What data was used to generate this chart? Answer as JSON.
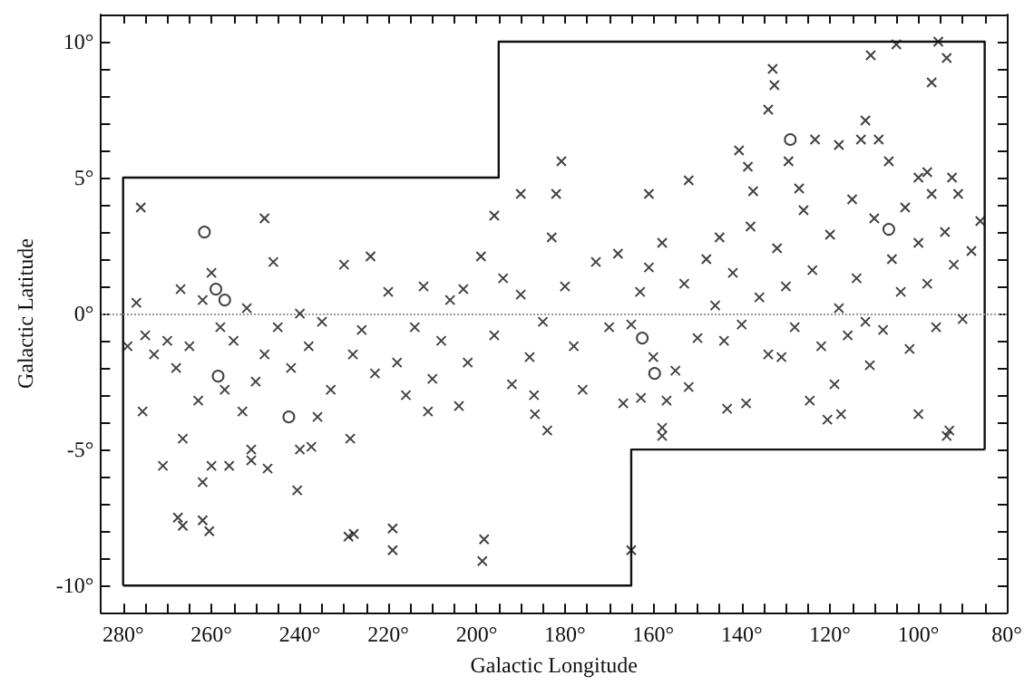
{
  "chart_data": {
    "type": "scatter",
    "xlabel": "Galactic Longitude",
    "ylabel": "Galactic Latitude",
    "xlim": [
      285,
      80
    ],
    "ylim": [
      -11,
      11
    ],
    "xticks": [
      {
        "value": 280,
        "label": "280°"
      },
      {
        "value": 275,
        "label": null
      },
      {
        "value": 270,
        "label": null
      },
      {
        "value": 265,
        "label": null
      },
      {
        "value": 260,
        "label": "260°"
      },
      {
        "value": 255,
        "label": null
      },
      {
        "value": 250,
        "label": null
      },
      {
        "value": 245,
        "label": null
      },
      {
        "value": 240,
        "label": "240°"
      },
      {
        "value": 235,
        "label": null
      },
      {
        "value": 230,
        "label": null
      },
      {
        "value": 225,
        "label": null
      },
      {
        "value": 220,
        "label": "220°"
      },
      {
        "value": 215,
        "label": null
      },
      {
        "value": 210,
        "label": null
      },
      {
        "value": 205,
        "label": null
      },
      {
        "value": 200,
        "label": "200°"
      },
      {
        "value": 195,
        "label": null
      },
      {
        "value": 190,
        "label": null
      },
      {
        "value": 185,
        "label": null
      },
      {
        "value": 180,
        "label": "180°"
      },
      {
        "value": 175,
        "label": null
      },
      {
        "value": 170,
        "label": null
      },
      {
        "value": 165,
        "label": null
      },
      {
        "value": 160,
        "label": "160°"
      },
      {
        "value": 155,
        "label": null
      },
      {
        "value": 150,
        "label": null
      },
      {
        "value": 145,
        "label": null
      },
      {
        "value": 140,
        "label": "140°"
      },
      {
        "value": 135,
        "label": null
      },
      {
        "value": 130,
        "label": null
      },
      {
        "value": 125,
        "label": null
      },
      {
        "value": 120,
        "label": "120°"
      },
      {
        "value": 115,
        "label": null
      },
      {
        "value": 110,
        "label": null
      },
      {
        "value": 105,
        "label": null
      },
      {
        "value": 100,
        "label": "100°"
      },
      {
        "value": 95,
        "label": null
      },
      {
        "value": 90,
        "label": null
      },
      {
        "value": 85,
        "label": null
      },
      {
        "value": 80,
        "label": "80°"
      }
    ],
    "yticks": [
      {
        "value": -10,
        "label": "-10°"
      },
      {
        "value": -9,
        "label": null
      },
      {
        "value": -8,
        "label": null
      },
      {
        "value": -7,
        "label": null
      },
      {
        "value": -6,
        "label": null
      },
      {
        "value": -5,
        "label": "-5°"
      },
      {
        "value": -4,
        "label": null
      },
      {
        "value": -3,
        "label": null
      },
      {
        "value": -2,
        "label": null
      },
      {
        "value": -1,
        "label": null
      },
      {
        "value": 0,
        "label": "0°"
      },
      {
        "value": 1,
        "label": null
      },
      {
        "value": 2,
        "label": null
      },
      {
        "value": 3,
        "label": null
      },
      {
        "value": 4,
        "label": null
      },
      {
        "value": 5,
        "label": "5°"
      },
      {
        "value": 6,
        "label": null
      },
      {
        "value": 7,
        "label": null
      },
      {
        "value": 8,
        "label": null
      },
      {
        "value": 9,
        "label": null
      },
      {
        "value": 10,
        "label": "10°"
      }
    ],
    "grid": false,
    "ref_lines": [
      {
        "axis": "y",
        "value": 0,
        "label": null,
        "color": "#999999",
        "line_style": "dotted"
      }
    ],
    "series": [
      {
        "marker": "cross",
        "color": "#111111",
        "x": [
          276,
          196,
          190,
          133,
          132.6,
          134,
          110.8,
          105,
          95.5,
          93.6,
          97,
          112,
          123.4,
          118,
          113,
          109,
          140.6,
          138.6,
          129.4,
          180.8,
          182,
          152,
          161,
          137.4,
          106.7,
          100,
          98,
          92.4,
          91,
          248,
          271,
          267.6,
          266.5,
          262,
          260.5,
          262,
          260,
          256,
          251,
          251,
          247.3,
          240.6,
          240,
          237.4,
          228.6,
          229,
          227.8,
          219,
          219,
          198.3,
          198.7,
          266.5,
          275.6,
          165,
          158,
          158,
          93.6,
          93,
          100,
          117.5,
          120.6,
          124.6,
          143.3,
          139,
          166.8,
          162.8,
          157,
          184,
          186.8,
          270,
          275,
          273,
          268,
          265,
          262,
          260,
          258,
          255,
          252,
          250,
          248,
          245,
          242,
          240,
          238,
          235,
          233,
          230,
          228,
          226,
          223,
          220,
          218,
          216,
          214,
          212,
          210,
          208,
          206,
          204,
          202,
          199,
          196,
          194,
          192,
          190,
          188,
          185,
          183,
          180,
          178,
          176,
          173,
          170,
          168,
          165,
          163,
          160,
          158,
          155,
          153,
          150,
          148,
          146,
          144,
          142,
          140,
          138,
          136,
          134,
          132,
          130,
          128,
          126,
          124,
          122,
          120,
          118,
          116,
          114,
          112,
          110,
          108,
          106,
          104,
          102,
          100,
          98,
          96,
          94,
          92,
          90,
          88,
          86,
          267,
          263,
          257,
          253,
          246,
          236,
          224,
          211,
          203,
          115,
          111,
          103,
          97,
          119,
          127,
          131,
          145,
          152,
          161,
          187,
          279,
          277
        ],
        "values": [
          3.9,
          3.6,
          4.4,
          9.0,
          8.4,
          7.5,
          9.5,
          9.9,
          10.0,
          9.4,
          8.5,
          7.1,
          6.4,
          6.2,
          6.4,
          6.4,
          6.0,
          5.4,
          5.6,
          5.6,
          4.4,
          4.9,
          4.4,
          4.5,
          5.6,
          5.0,
          5.2,
          5.0,
          4.4,
          3.5,
          -5.6,
          -7.5,
          -7.8,
          -7.6,
          -8.0,
          -6.2,
          -5.6,
          -5.6,
          -5.0,
          -5.4,
          -5.7,
          -6.5,
          -5.0,
          -4.9,
          -4.6,
          -8.2,
          -8.1,
          -7.9,
          -8.7,
          -8.3,
          -9.1,
          -4.6,
          -3.6,
          -8.7,
          -4.5,
          -4.2,
          -4.5,
          -4.3,
          -3.7,
          -3.7,
          -3.9,
          -3.2,
          -3.5,
          -3.3,
          -3.3,
          -3.1,
          -3.2,
          -4.3,
          -3.7,
          -1.0,
          -0.8,
          -1.5,
          -2.0,
          -1.2,
          0.5,
          1.5,
          -0.5,
          -1.0,
          0.2,
          -2.5,
          -1.5,
          -0.5,
          -2.0,
          0.0,
          -1.2,
          -0.3,
          -2.8,
          1.8,
          -1.5,
          -0.6,
          -2.2,
          0.8,
          -1.8,
          -3.0,
          -0.5,
          1.0,
          -2.4,
          -1.0,
          0.5,
          -3.4,
          -1.8,
          2.1,
          -0.8,
          1.3,
          -2.6,
          0.7,
          -1.6,
          -0.3,
          2.8,
          1.0,
          -1.2,
          -2.8,
          1.9,
          -0.5,
          2.2,
          -0.4,
          0.8,
          -1.6,
          2.6,
          -2.1,
          1.1,
          -0.9,
          2.0,
          0.3,
          -1.0,
          1.5,
          -0.4,
          3.2,
          0.6,
          -1.5,
          2.4,
          1.0,
          -0.5,
          3.8,
          1.6,
          -1.2,
          2.9,
          0.2,
          -0.8,
          1.3,
          -0.3,
          3.5,
          -0.6,
          2.0,
          0.8,
          -1.3,
          2.6,
          1.1,
          -0.5,
          3.0,
          1.8,
          -0.2,
          2.3,
          3.4,
          0.9,
          -3.2,
          -2.8,
          -3.6,
          1.9,
          -3.8,
          2.1,
          -3.6,
          0.9,
          4.2,
          -1.9,
          3.9,
          4.4,
          -2.6,
          4.6,
          -1.6,
          2.8,
          -2.7,
          1.7,
          -3.0,
          -1.2,
          0.4
        ]
      },
      {
        "marker": "circle",
        "color": "#111111",
        "x": [
          261.6,
          259,
          257,
          242.5,
          258.5,
          129,
          106.7,
          162.5,
          159.7
        ],
        "values": [
          3.0,
          0.9,
          0.5,
          -3.8,
          -2.3,
          6.4,
          3.1,
          -0.9,
          -2.2
        ]
      },
      {
        "type": "line",
        "marker": "none",
        "line_style": "solid",
        "color": "#111111",
        "x": [
          280,
          280,
          195,
          195,
          85,
          85
        ],
        "values": [
          -10,
          5,
          5,
          10,
          10,
          -5
        ]
      },
      {
        "type": "line",
        "marker": "none",
        "line_style": "solid",
        "color": "#111111",
        "x": [
          85,
          165,
          165,
          280
        ],
        "values": [
          -5,
          -5,
          -10,
          -10
        ]
      }
    ]
  }
}
